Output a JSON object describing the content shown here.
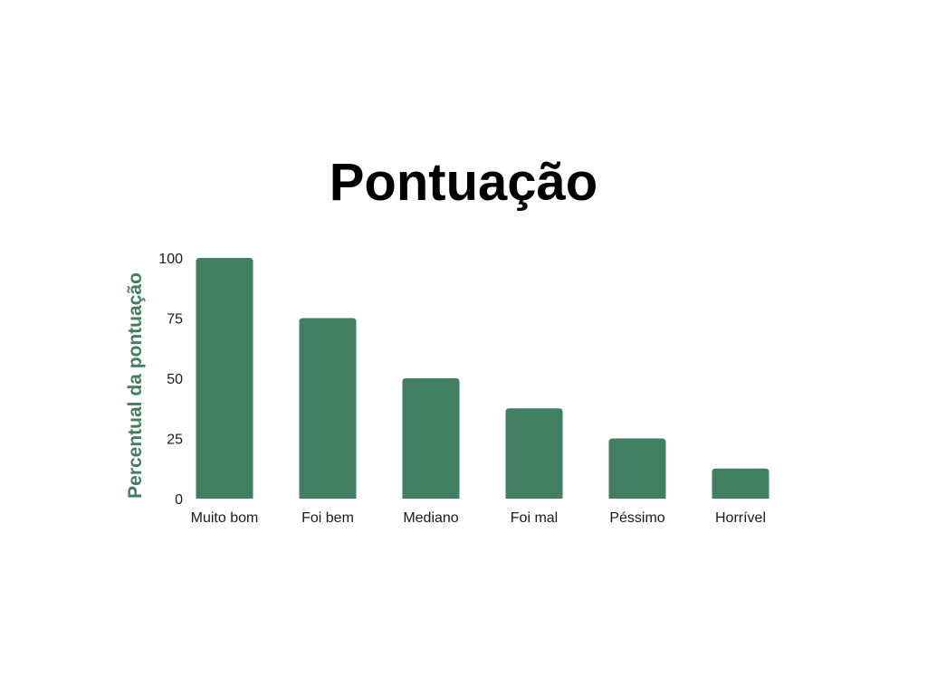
{
  "chart_data": {
    "type": "bar",
    "title": "Pontuação",
    "xlabel": "",
    "ylabel": "Percentual da pontuação",
    "categories": [
      "Muito bom",
      "Foi bem",
      "Mediano",
      "Foi mal",
      "Péssimo",
      "Horrível"
    ],
    "values": [
      100,
      75,
      50,
      37.5,
      25,
      12.5
    ],
    "ylim": [
      0,
      100
    ],
    "yticks": [
      "0",
      "25",
      "50",
      "75",
      "100"
    ],
    "grid": false,
    "legend": "none",
    "colors": {
      "bar": "#407f61",
      "ylabel": "#407f61"
    }
  }
}
